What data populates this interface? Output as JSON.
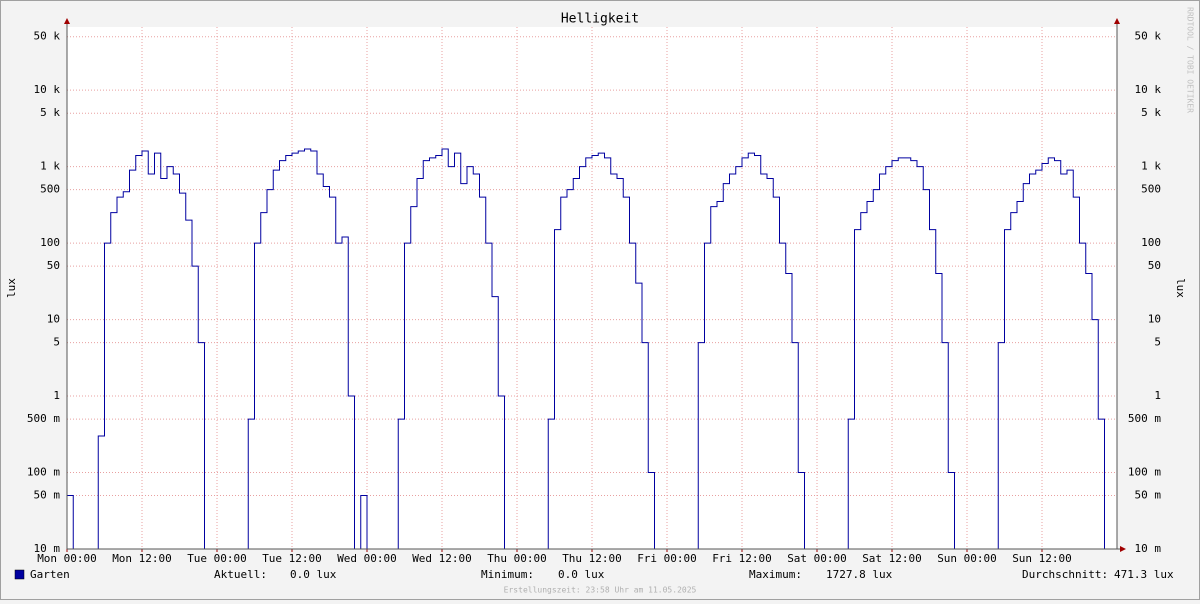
{
  "chart_data": {
    "type": "line",
    "title": "Helligkeit",
    "y_label": "lux",
    "watermark": "RRDTOOL / TOBI OETIKER",
    "footer": "Erstellungszeit: 23:58 Uhr am 11.05.2025",
    "log_scale": true,
    "grid": true,
    "ylim": [
      0.01,
      67000
    ],
    "yticks": [
      {
        "value": 0.01,
        "label": "10 m"
      },
      {
        "value": 0.05,
        "label": "50 m"
      },
      {
        "value": 0.1,
        "label": "100 m"
      },
      {
        "value": 0.5,
        "label": "500 m"
      },
      1,
      5,
      10,
      50,
      100,
      500,
      {
        "value": 1000,
        "label": "1 k"
      },
      {
        "value": 5000,
        "label": "5 k"
      },
      {
        "value": 10000,
        "label": "10 k"
      },
      {
        "value": 50000,
        "label": "50 k"
      }
    ],
    "xlim": [
      0,
      168
    ],
    "xticks": [
      {
        "value": 0,
        "label": "Mon 00:00"
      },
      {
        "value": 12,
        "label": "Mon 12:00"
      },
      {
        "value": 24,
        "label": "Tue 00:00"
      },
      {
        "value": 36,
        "label": "Tue 12:00"
      },
      {
        "value": 48,
        "label": "Wed 00:00"
      },
      {
        "value": 60,
        "label": "Wed 12:00"
      },
      {
        "value": 72,
        "label": "Thu 00:00"
      },
      {
        "value": 84,
        "label": "Thu 12:00"
      },
      {
        "value": 96,
        "label": "Fri 00:00"
      },
      {
        "value": 108,
        "label": "Fri 12:00"
      },
      {
        "value": 120,
        "label": "Sat 00:00"
      },
      {
        "value": 132,
        "label": "Sat 12:00"
      },
      {
        "value": 144,
        "label": "Sun 00:00"
      },
      {
        "value": 156,
        "label": "Sun 12:00"
      }
    ],
    "x": [
      0,
      1,
      2,
      3,
      4,
      5,
      6,
      7,
      8,
      9,
      10,
      11,
      12,
      13,
      14,
      15,
      16,
      17,
      18,
      19,
      20,
      21,
      22,
      23,
      24,
      25,
      26,
      27,
      28,
      29,
      30,
      31,
      32,
      33,
      34,
      35,
      36,
      37,
      38,
      39,
      40,
      41,
      42,
      43,
      44,
      45,
      46,
      47,
      48,
      49,
      50,
      51,
      52,
      53,
      54,
      55,
      56,
      57,
      58,
      59,
      60,
      61,
      62,
      63,
      64,
      65,
      66,
      67,
      68,
      69,
      70,
      71,
      72,
      73,
      74,
      75,
      76,
      77,
      78,
      79,
      80,
      81,
      82,
      83,
      84,
      85,
      86,
      87,
      88,
      89,
      90,
      91,
      92,
      93,
      94,
      95,
      96,
      97,
      98,
      99,
      100,
      101,
      102,
      103,
      104,
      105,
      106,
      107,
      108,
      109,
      110,
      111,
      112,
      113,
      114,
      115,
      116,
      117,
      118,
      119,
      120,
      121,
      122,
      123,
      124,
      125,
      126,
      127,
      128,
      129,
      130,
      131,
      132,
      133,
      134,
      135,
      136,
      137,
      138,
      139,
      140,
      141,
      142,
      143,
      144,
      145,
      146,
      147,
      148,
      149,
      150,
      151,
      152,
      153,
      154,
      155,
      156,
      157,
      158,
      159,
      160,
      161,
      162,
      163,
      164,
      165,
      166,
      167
    ],
    "series": [
      {
        "name": "Garten",
        "color": "#0000a0",
        "values": [
          0.05,
          0,
          0,
          0,
          0,
          0.3,
          100,
          250,
          400,
          470,
          900,
          1400,
          1600,
          800,
          1500,
          700,
          1000,
          800,
          450,
          200,
          50,
          5,
          0,
          0,
          0,
          0,
          0,
          0,
          0,
          0.5,
          100,
          250,
          500,
          900,
          1200,
          1400,
          1500,
          1600,
          1700,
          1600,
          800,
          550,
          400,
          100,
          120,
          1,
          0,
          0.05,
          0,
          0,
          0,
          0,
          0,
          0.5,
          100,
          300,
          700,
          1200,
          1300,
          1400,
          1700,
          1000,
          1500,
          600,
          1000,
          800,
          400,
          100,
          20,
          1,
          0,
          0,
          0,
          0,
          0,
          0,
          0,
          0.5,
          150,
          400,
          500,
          700,
          1000,
          1300,
          1400,
          1500,
          1300,
          800,
          700,
          400,
          100,
          30,
          5,
          0.1,
          0,
          0,
          0,
          0,
          0,
          0,
          0.01,
          5,
          100,
          300,
          350,
          600,
          800,
          1000,
          1300,
          1500,
          1400,
          800,
          700,
          400,
          100,
          40,
          5,
          0.1,
          0,
          0,
          0,
          0,
          0,
          0,
          0,
          0.5,
          150,
          250,
          350,
          500,
          800,
          1000,
          1200,
          1300,
          1300,
          1200,
          1000,
          500,
          150,
          40,
          5,
          0.1,
          0,
          0,
          0,
          0,
          0,
          0,
          0.01,
          5,
          150,
          250,
          350,
          600,
          800,
          900,
          1100,
          1300,
          1200,
          800,
          900,
          400,
          100,
          40,
          10,
          0.5,
          0,
          0
        ]
      }
    ],
    "legend_stats": [
      {
        "label": "Aktuell:",
        "value": "0.0 lux"
      },
      {
        "label": "Minimum:",
        "value": "0.0 lux"
      },
      {
        "label": "Maximum:",
        "value": "1727.8 lux"
      },
      {
        "label": "Durchschnitt:",
        "value": "471.3 lux"
      }
    ]
  }
}
